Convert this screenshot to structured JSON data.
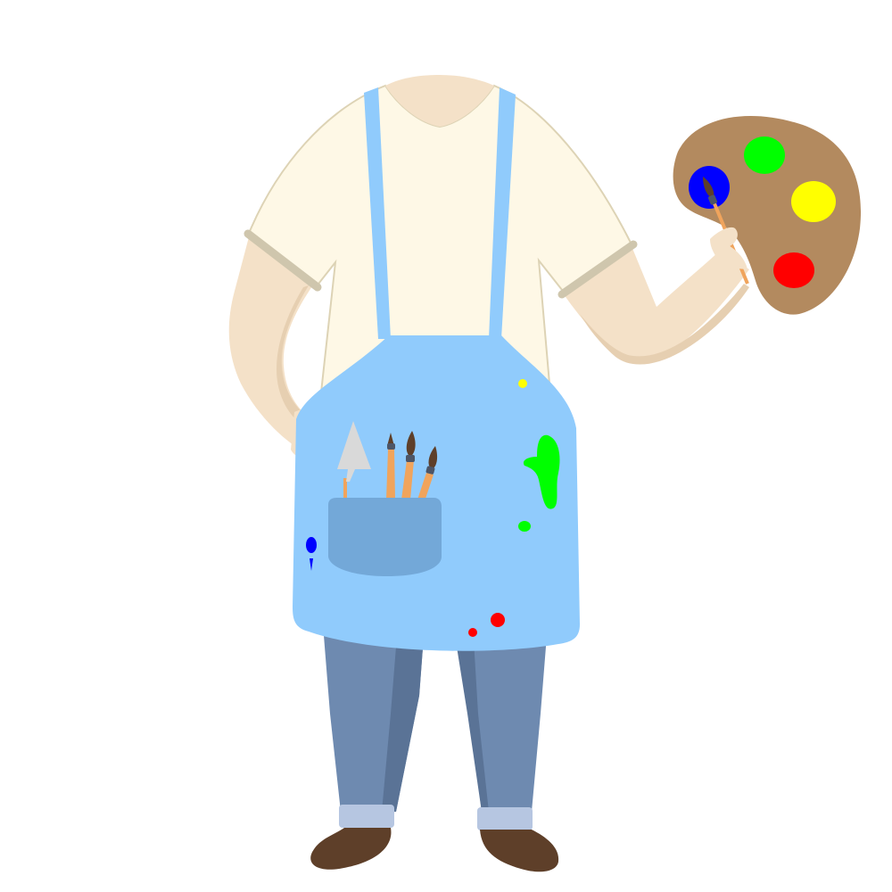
{
  "figure": {
    "subject": "headless-painter-costume-cutout",
    "colors": {
      "background": "#ffffff",
      "skin": "#f4e1c8",
      "skin_shadow": "#e6cfb1",
      "shirt": "#fef8e6",
      "shirt_outline": "#ddd3b5",
      "sleeve_cuff": "#cfc6ad",
      "apron": "#90cbfc",
      "apron_strap": "#90cbfc",
      "apron_pocket": "#73a8d8",
      "pants": "#6e8ab0",
      "pants_shadow": "#5a7396",
      "pants_cuff": "#b6c6e1",
      "shoes": "#5e3f29",
      "palette": "#b38a5f",
      "brush_handle": "#f0a45c",
      "brush_tip": "#5e3f29",
      "spatula": "#d9d9d9"
    },
    "palette_paints": [
      "#0000ff",
      "#00ff00",
      "#ffff00",
      "#ff0000"
    ],
    "splatters": [
      "#ffff00",
      "#00ff00",
      "#0000ff",
      "#ff0000"
    ],
    "icons": [
      "paint-palette-icon",
      "paintbrush-icon",
      "palette-knife-icon",
      "apron-pocket-icon"
    ]
  }
}
